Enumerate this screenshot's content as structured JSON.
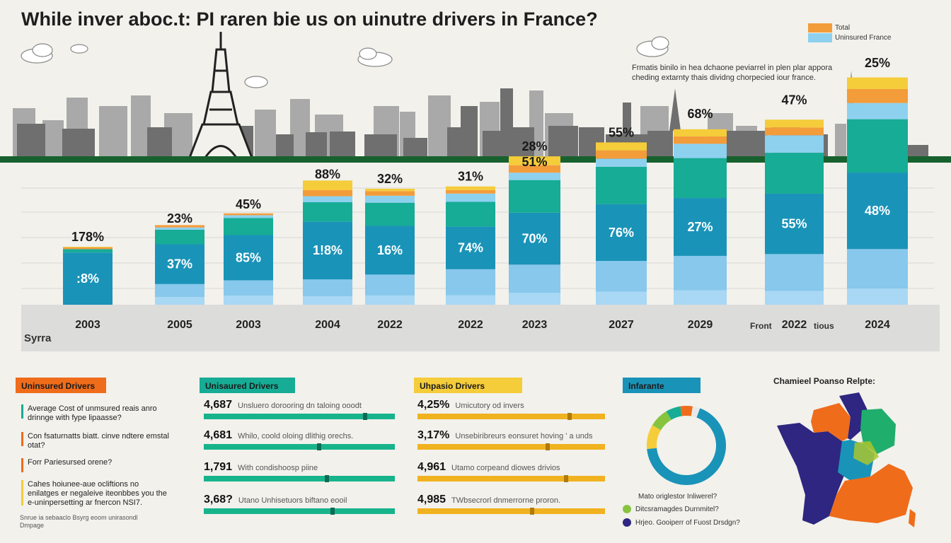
{
  "title": "While inver aboc.t: PI raren bie us on uinutre drivers in France?",
  "legend": [
    {
      "label": "Total",
      "color": "#f39c3a"
    },
    {
      "label": "Uninsured France",
      "color": "#8fd0ee"
    }
  ],
  "note": "Frmatis binilo in hea dchaone peviarrel in plen plar appora cheding extarnty thais dividng chorpecied iour france.",
  "source_label": "Syrra",
  "chart_data": {
    "type": "bar",
    "stacked": true,
    "categories": [
      "2003",
      "2005",
      "2003",
      "2004",
      "2022",
      "2022",
      "2023",
      "2027",
      "2029",
      "2022",
      "2024"
    ],
    "category_prefix_suffix": {
      "index": 9,
      "prefix": "Front",
      "suffix": "tious"
    },
    "bar_totals": [
      25,
      33,
      39,
      52,
      50,
      51,
      64,
      70,
      78,
      84,
      100
    ],
    "top_labels": [
      "178%",
      "23%",
      "45%",
      "88%",
      "32%",
      "31%",
      "28%",
      "55%",
      "68%",
      "47%",
      "25%"
    ],
    "top_labels_secondary": [
      "",
      "",
      "",
      "",
      "",
      "",
      "51%",
      "",
      "",
      "",
      ""
    ],
    "main_labels": [
      ":8%",
      "37%",
      "85%",
      "1!8%",
      "16%",
      "74%",
      "70%",
      "76%",
      "27%",
      "55%",
      "48%"
    ],
    "segment_colors": [
      "#a8d8f4",
      "#87c8ec",
      "#1a93b8",
      "#16ac95",
      "#8dd1ef",
      "#f39c3a",
      "#f5cc3a"
    ],
    "segment_shares": [
      [
        0.0,
        0.0,
        0.9,
        0.06,
        0.0,
        0.03,
        0.01
      ],
      [
        0.1,
        0.17,
        0.52,
        0.19,
        0.03,
        0.03,
        0.0
      ],
      [
        0.1,
        0.17,
        0.5,
        0.19,
        0.03,
        0.02,
        0.0
      ],
      [
        0.07,
        0.14,
        0.48,
        0.16,
        0.05,
        0.05,
        0.08
      ],
      [
        0.08,
        0.18,
        0.42,
        0.2,
        0.06,
        0.04,
        0.02
      ],
      [
        0.08,
        0.22,
        0.36,
        0.21,
        0.07,
        0.03,
        0.03
      ],
      [
        0.08,
        0.19,
        0.35,
        0.22,
        0.05,
        0.05,
        0.06
      ],
      [
        0.08,
        0.19,
        0.35,
        0.23,
        0.05,
        0.05,
        0.05
      ],
      [
        0.08,
        0.19,
        0.32,
        0.22,
        0.08,
        0.04,
        0.04
      ],
      [
        0.07,
        0.19,
        0.31,
        0.21,
        0.09,
        0.04,
        0.04
      ],
      [
        0.07,
        0.17,
        0.33,
        0.23,
        0.07,
        0.06,
        0.05
      ]
    ],
    "title": "",
    "xlabel": "",
    "ylabel": "",
    "grid": true
  },
  "sections": {
    "uninsured": {
      "tag": "Uninsured Drivers",
      "color": "#ef6c1a",
      "items": [
        {
          "text": "Average Cost of unmsured reais anro drinnge with fype lipaasse?",
          "color": "#16ac95"
        },
        {
          "text": "Con fsaturnatts biatt. cinve ndtere emstal otat?",
          "color": "#ef6c1a"
        },
        {
          "text": "Forr Pariesursed orene?",
          "color": "#ef6c1a"
        },
        {
          "text": "Cahes hoiunee-aue ocliftions no enilatges er negaleive iteonbbes you the e-uninpersetting ar fnercon NSI7.",
          "color": "#f5cc3a"
        }
      ],
      "footer": "Snrue ia sebaaclo Bsyrg eoom unirasondl Dmpage"
    },
    "unisaured": {
      "tag": "Unisaured Drivers",
      "color": "#16ac95",
      "stats": [
        {
          "num": "4,687",
          "desc": "Unsluero dorooring dn taloing ooodt",
          "fill": 0.85
        },
        {
          "num": "4,681",
          "desc": "Whilo, coold oloing dlithig orechs.",
          "fill": 0.61
        },
        {
          "num": "1,791",
          "desc": "With condishoosp piine",
          "fill": 0.65
        },
        {
          "num": "3,68?",
          "desc": "Utano Unhisetuors biftano eooil",
          "fill": 0.68
        }
      ]
    },
    "uhpasio": {
      "tag": "Uhpasio Drivers",
      "color": "#f5cc3a",
      "stats": [
        {
          "num": "4,25%",
          "desc": "Umicutory od invers",
          "fill": 0.82
        },
        {
          "num": "3,17%",
          "desc": "Unsebiribreurs eonsuret hoving ' a unds",
          "fill": 0.7
        },
        {
          "num": "4,961",
          "desc": "Utamo corpeand diowes drivios",
          "fill": 0.8
        },
        {
          "num": "4,985",
          "desc": "TWbsecrorl dnmerrorne proron.",
          "fill": 0.62
        }
      ]
    },
    "infarante": {
      "tag": "Infarante",
      "color": "#1a93b8",
      "donut": [
        {
          "value": 68,
          "color": "#1a93b8"
        },
        {
          "value": 10,
          "color": "#f5cc3a"
        },
        {
          "value": 8,
          "color": "#86c440"
        },
        {
          "value": 6,
          "color": "#16ac95"
        },
        {
          "value": 5,
          "color": "#ef6c1a"
        },
        {
          "value": 3,
          "color": "#e8e8e8"
        }
      ],
      "question": "Mato origlestor Inliwerel?",
      "legend": [
        {
          "text": "Ditcsramagdes Durnmitel?",
          "color": "#86c440"
        },
        {
          "text": "Hrjeo. Gooiperr of Fuost Drsdgn?",
          "color": "#2e2680"
        }
      ]
    },
    "map": {
      "title": "Chamieel Poanso Relpte:",
      "regions": [
        "#2e2680",
        "#ef6c1a",
        "#1fae6c",
        "#1a93b8",
        "#a9c52e"
      ]
    }
  }
}
